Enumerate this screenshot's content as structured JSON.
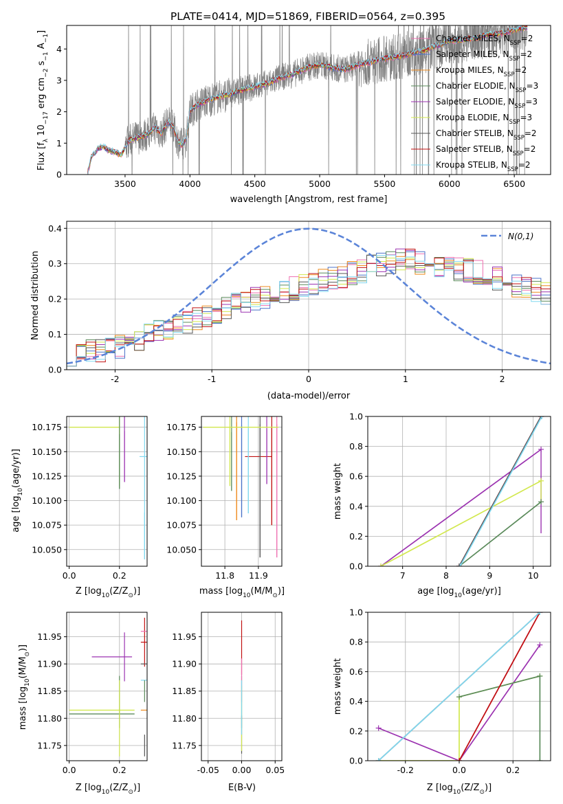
{
  "title": "PLATE=0414, MJD=51869, FIBERID=0564, z=0.395",
  "models": [
    {
      "name": "Chabrier MILES, N$_{SSP}$=2",
      "label_main": "Chabrier MILES, N",
      "label_sub": "SSP",
      "label_tail": "=2",
      "color": "#ee6fb0"
    },
    {
      "name": "Salpeter MILES, N$_{SSP}$=2",
      "label_main": "Salpeter MILES, N",
      "label_sub": "SSP",
      "label_tail": "=2",
      "color": "#4a72c8"
    },
    {
      "name": "Kroupa MILES, N$_{SSP}$=2",
      "label_main": "Kroupa MILES, N",
      "label_sub": "SSP",
      "label_tail": "=2",
      "color": "#ee8a1c"
    },
    {
      "name": "Chabrier ELODIE, N$_{SSP}$=3",
      "label_main": "Chabrier ELODIE, N",
      "label_sub": "SSP",
      "label_tail": "=3",
      "color": "#5a8a5a"
    },
    {
      "name": "Salpeter ELODIE, N$_{SSP}$=3",
      "label_main": "Salpeter ELODIE, N",
      "label_sub": "SSP",
      "label_tail": "=3",
      "color": "#9b32b0"
    },
    {
      "name": "Kroupa ELODIE, N$_{SSP}$=3",
      "label_main": "Kroupa ELODIE, N",
      "label_sub": "SSP",
      "label_tail": "=3",
      "color": "#d2e84e"
    },
    {
      "name": "Chabrier STELIB, N$_{SSP}$=2",
      "label_main": "Chabrier STELIB, N",
      "label_sub": "SSP",
      "label_tail": "=2",
      "color": "#555555"
    },
    {
      "name": "Salpeter STELIB, N$_{SSP}$=2",
      "label_main": "Salpeter STELIB, N",
      "label_sub": "SSP",
      "label_tail": "=2",
      "color": "#c01010"
    },
    {
      "name": "Kroupa STELIB, N$_{SSP}$=2",
      "label_main": "Kroupa STELIB, N",
      "label_sub": "SSP",
      "label_tail": "=2",
      "color": "#80d8f0"
    }
  ],
  "chart_data": [
    {
      "id": "spectrum",
      "type": "line",
      "xlabel": "wavelength [Angstrom, rest frame]",
      "ylabel_parts": [
        "Flux [f",
        "λ",
        " 10",
        "−17",
        " erg cm",
        "−2",
        " s",
        "−1",
        " A",
        "−1",
        "]"
      ],
      "xlim": [
        3050,
        6780
      ],
      "ylim": [
        0,
        4.75
      ],
      "xticks": [
        3500,
        4000,
        4500,
        5000,
        5500,
        6000,
        6500
      ],
      "yticks": [
        0,
        1,
        2,
        3,
        4
      ],
      "observed_color": "#808080",
      "model_continuum": {
        "x": [
          3210,
          3240,
          3290,
          3330,
          3370,
          3420,
          3470,
          3520,
          3570,
          3620,
          3680,
          3730,
          3780,
          3830,
          3870,
          3910,
          3940,
          3970,
          4000,
          4050,
          4100,
          4200,
          4300,
          4400,
          4500,
          4600,
          4700,
          4800,
          4900,
          5000,
          5100,
          5200,
          5300,
          5400,
          5500,
          5600,
          5700,
          5800,
          5900,
          6000,
          6100,
          6200,
          6300,
          6400,
          6500,
          6600
        ],
        "y": [
          0.0,
          0.55,
          0.82,
          0.9,
          0.78,
          0.72,
          0.62,
          1.05,
          1.15,
          1.2,
          1.3,
          1.5,
          1.3,
          1.7,
          1.5,
          1.05,
          0.95,
          1.1,
          2.0,
          2.2,
          2.3,
          2.45,
          2.55,
          2.7,
          2.8,
          2.9,
          3.1,
          3.2,
          3.4,
          3.5,
          3.4,
          3.35,
          3.5,
          3.6,
          3.7,
          3.75,
          3.85,
          3.95,
          4.1,
          4.25,
          4.3,
          4.35,
          4.45,
          4.5,
          4.6,
          4.7
        ]
      }
    },
    {
      "id": "residuals",
      "type": "histogram",
      "xlabel": "(data-model)/error",
      "ylabel": "Normed distribution",
      "xlim": [
        -2.5,
        2.5
      ],
      "ylim": [
        0,
        0.42
      ],
      "xticks": [
        -2,
        -1,
        0,
        1,
        2
      ],
      "yticks": [
        0.0,
        0.1,
        0.2,
        0.3,
        0.4
      ],
      "gaussian": {
        "label": "N(0,1)",
        "color": "#5b84d8",
        "mean": 0,
        "sigma": 1
      },
      "bin_width": 0.1,
      "mean_envelope": [
        0.04,
        0.045,
        0.05,
        0.055,
        0.06,
        0.065,
        0.075,
        0.085,
        0.095,
        0.105,
        0.115,
        0.125,
        0.135,
        0.145,
        0.155,
        0.165,
        0.175,
        0.185,
        0.19,
        0.2,
        0.205,
        0.215,
        0.22,
        0.23,
        0.235,
        0.245,
        0.25,
        0.26,
        0.265,
        0.275,
        0.28,
        0.29,
        0.3,
        0.305,
        0.31,
        0.31,
        0.3,
        0.3,
        0.295,
        0.29,
        0.285,
        0.28,
        0.275,
        0.27,
        0.26,
        0.25,
        0.24,
        0.235,
        0.225,
        0.215,
        0.205,
        0.195,
        0.185,
        0.175,
        0.165,
        0.155,
        0.145,
        0.135,
        0.125,
        0.12,
        0.115,
        0.11,
        0.105,
        0.1,
        0.1,
        0.1,
        0.095,
        0.09,
        0.09,
        0.09
      ]
    },
    {
      "id": "age_vs_Z",
      "type": "errorbar",
      "xlabel_parts": [
        "Z [log",
        "10",
        "(Z/Z",
        "⊙",
        ")]"
      ],
      "ylabel_parts": [
        "age  [log",
        "10",
        "(age/yr)]"
      ],
      "xlim": [
        -0.01,
        0.31
      ],
      "ylim": [
        10.033,
        10.186
      ],
      "xticks": [
        0.0,
        0.2
      ],
      "yticks": [
        10.05,
        10.075,
        10.1,
        10.125,
        10.15,
        10.175
      ],
      "points": [
        {
          "m": 8,
          "x": 0.3,
          "y": 10.145,
          "xerr": 0.02,
          "yerr": 0.0
        },
        {
          "m": 8,
          "x": 0.3,
          "y": 10.064,
          "xerr": 0.0,
          "yerr": 0.024
        },
        {
          "m": 5,
          "x": 0.0,
          "y": 10.175,
          "xerr": 0.0,
          "yerr": 0.0,
          "hline": [
            0.0,
            0.2
          ]
        },
        {
          "m": 5,
          "x": 0.2,
          "y": 10.145,
          "xerr": 0.0,
          "yerr": 0.03
        },
        {
          "m": 4,
          "x": 0.22,
          "y": 10.145,
          "xerr": 0.0,
          "yerr": 0.026
        },
        {
          "m": 3,
          "x": 0.2,
          "y": 10.14,
          "xerr": 0.0,
          "yerr": 0.028
        },
        {
          "m": 6,
          "x": 0.3,
          "y": 10.145,
          "xerr": 0.0,
          "yerr": 0.0
        },
        {
          "m": 8,
          "x": 0.3,
          "y": 10.175,
          "xerr": 0.0,
          "yerr": 0.0
        },
        {
          "m": 7,
          "x": 0.3,
          "y": 10.175,
          "xerr": 0.0,
          "yerr": 0.0
        }
      ]
    },
    {
      "id": "age_vs_mass",
      "type": "errorbar",
      "xlabel_parts": [
        "mass [log",
        "10",
        "(M/M",
        "⊙",
        ")]"
      ],
      "xlim": [
        11.73,
        11.97
      ],
      "ylim": [
        10.033,
        10.186
      ],
      "xticks": [
        11.8,
        11.9
      ],
      "yticks": [
        10.05,
        10.075,
        10.1,
        10.125,
        10.15,
        10.175
      ],
      "points": [
        {
          "m": 7,
          "x": 11.9,
          "y": 10.145,
          "xerr": 0.04,
          "yerr": 0.0
        },
        {
          "m": 0,
          "x": 11.955,
          "y": 10.11,
          "xerr": 0.0,
          "yerr": 0.068
        },
        {
          "m": 7,
          "x": 11.94,
          "y": 10.125,
          "xerr": 0.0,
          "yerr": 0.05
        },
        {
          "m": 6,
          "x": 11.905,
          "y": 10.11,
          "xerr": 0.0,
          "yerr": 0.068
        },
        {
          "m": 4,
          "x": 11.925,
          "y": 10.145,
          "xerr": 0.0,
          "yerr": 0.028
        },
        {
          "m": 8,
          "x": 11.87,
          "y": 10.13,
          "xerr": 0.0,
          "yerr": 0.043
        },
        {
          "m": 1,
          "x": 11.85,
          "y": 10.13,
          "xerr": 0.0,
          "yerr": 0.047
        },
        {
          "m": 2,
          "x": 11.835,
          "y": 10.13,
          "xerr": 0.0,
          "yerr": 0.05
        },
        {
          "m": 3,
          "x": 11.82,
          "y": 10.14,
          "xerr": 0.0,
          "yerr": 0.03
        },
        {
          "m": 5,
          "x": 11.815,
          "y": 10.145,
          "xerr": 0.0,
          "yerr": 0.03
        },
        {
          "m": 5,
          "x": 11.78,
          "y": 10.175,
          "xerr": 0.0,
          "yerr": 0.0,
          "hline": [
            11.735,
            11.96
          ]
        }
      ]
    },
    {
      "id": "mass_weight_vs_age",
      "type": "line",
      "xlabel_parts": [
        "age  [log",
        "10",
        "(age/yr)]"
      ],
      "ylabel": "mass weight",
      "xlim": [
        6.2,
        10.4
      ],
      "ylim": [
        0.0,
        1.0
      ],
      "xticks": [
        7,
        8,
        9,
        10
      ],
      "yticks": [
        0.0,
        0.2,
        0.4,
        0.6,
        0.8,
        1.0
      ],
      "series": [
        {
          "m": 4,
          "x": [
            6.5,
            10.18
          ],
          "y": [
            0.0,
            0.78
          ],
          "yerr_at_end": [
            0.22,
            0.78
          ]
        },
        {
          "m": 5,
          "x": [
            6.5,
            10.18
          ],
          "y": [
            0.0,
            0.57
          ],
          "yerr_at_end": [
            0.43,
            0.57
          ]
        },
        {
          "m": 3,
          "x": [
            8.3,
            10.18
          ],
          "y": [
            0.0,
            0.43
          ]
        },
        {
          "m": 0,
          "x": [
            8.3,
            10.18
          ],
          "y": [
            0.0,
            1.0
          ]
        },
        {
          "m": 7,
          "x": [
            8.3,
            10.18
          ],
          "y": [
            0.0,
            1.0
          ]
        },
        {
          "m": 6,
          "x": [
            8.3,
            10.18
          ],
          "y": [
            0.0,
            1.0
          ]
        },
        {
          "m": 8,
          "x": [
            8.32,
            10.2
          ],
          "y": [
            0.0,
            1.0
          ]
        }
      ]
    },
    {
      "id": "mass_vs_Z",
      "type": "errorbar",
      "xlabel_parts": [
        "Z [log",
        "10",
        "(Z/Z",
        "⊙",
        ")]"
      ],
      "ylabel_parts": [
        "mass [log",
        "10",
        "(M/M",
        "⊙",
        ")]"
      ],
      "xlim": [
        -0.01,
        0.31
      ],
      "ylim": [
        11.722,
        11.995
      ],
      "xticks": [
        0.0,
        0.2
      ],
      "yticks": [
        11.75,
        11.8,
        11.85,
        11.9,
        11.95
      ],
      "points": [
        {
          "m": 5,
          "x": 0.0,
          "y": 11.815,
          "xerr": 0.0,
          "yerr": 0.0,
          "hline": [
            0.0,
            0.26
          ]
        },
        {
          "m": 3,
          "x": 0.0,
          "y": 11.808,
          "xerr": 0.0,
          "yerr": 0.0,
          "hline": [
            0.0,
            0.26
          ]
        },
        {
          "m": 4,
          "x": 0.17,
          "y": 11.913,
          "xerr": 0.08,
          "yerr": 0.0
        },
        {
          "m": 4,
          "x": 0.22,
          "y": 11.913,
          "xerr": 0.0,
          "yerr": 0.045
        },
        {
          "m": 3,
          "x": 0.2,
          "y": 11.83,
          "xerr": 0.0,
          "yerr": 0.048
        },
        {
          "m": 5,
          "x": 0.2,
          "y": 11.8,
          "xerr": 0.0,
          "yerr": 0.07
        },
        {
          "m": 7,
          "x": 0.3,
          "y": 11.94,
          "xerr": 0.015,
          "yerr": 0.045
        },
        {
          "m": 0,
          "x": 0.3,
          "y": 11.96,
          "xerr": 0.015,
          "yerr": 0.0
        },
        {
          "m": 2,
          "x": 0.3,
          "y": 11.815,
          "xerr": 0.015,
          "yerr": 0.0
        },
        {
          "m": 6,
          "x": 0.3,
          "y": 11.9,
          "xerr": 0.015,
          "yerr": 0.0
        },
        {
          "m": 8,
          "x": 0.3,
          "y": 11.87,
          "xerr": 0.015,
          "yerr": 0.0
        },
        {
          "m": 3,
          "x": 0.3,
          "y": 11.85,
          "xerr": 0.0,
          "yerr": 0.02
        },
        {
          "m": 6,
          "x": 0.3,
          "y": 11.75,
          "xerr": 0.0,
          "yerr": 0.02
        }
      ]
    },
    {
      "id": "mass_vs_ebv",
      "type": "errorbar",
      "xlabel": "E(B-V)",
      "xlim": [
        -0.06,
        0.06
      ],
      "ylim": [
        11.722,
        11.995
      ],
      "xticks": [
        -0.05,
        0.0,
        0.05
      ],
      "yticks": [
        11.75,
        11.8,
        11.85,
        11.9,
        11.95
      ],
      "points": [
        {
          "m": 7,
          "x": 0.0,
          "y": 11.93,
          "xerr": 0.0,
          "yerr": 0.05
        },
        {
          "m": 3,
          "x": 0.0,
          "y": 11.83,
          "xerr": 0.0,
          "yerr": 0.048
        },
        {
          "m": 0,
          "x": 0.0,
          "y": 11.87,
          "xerr": 0.0,
          "yerr": 0.04
        },
        {
          "m": 6,
          "x": 0.0,
          "y": 11.77,
          "xerr": 0.0,
          "yerr": 0.035
        },
        {
          "m": 5,
          "x": 0.0,
          "y": 11.8,
          "xerr": 0.0,
          "yerr": 0.06
        },
        {
          "m": 8,
          "x": 0.0,
          "y": 11.82,
          "xerr": 0.0,
          "yerr": 0.05
        }
      ]
    },
    {
      "id": "mass_weight_vs_Z",
      "type": "line",
      "xlabel_parts": [
        "Z [log",
        "10",
        "(Z/Z",
        "⊙",
        ")]"
      ],
      "ylabel": "mass weight",
      "xlim": [
        -0.34,
        0.34
      ],
      "ylim": [
        0.0,
        1.0
      ],
      "xticks": [
        -0.2,
        0.0,
        0.2
      ],
      "yticks": [
        0.0,
        0.2,
        0.4,
        0.6,
        0.8,
        1.0
      ],
      "series": [
        {
          "m": 4,
          "x": [
            -0.3,
            0.0,
            0.3
          ],
          "y": [
            0.22,
            0.0,
            0.78
          ]
        },
        {
          "m": 5,
          "x": [
            -0.3,
            0.0,
            0.0,
            0.3
          ],
          "y": [
            0.0,
            0.0,
            0.43,
            0.57
          ]
        },
        {
          "m": 3,
          "x": [
            0.0,
            0.3,
            0.3
          ],
          "y": [
            0.43,
            0.57,
            0.0
          ]
        },
        {
          "m": 0,
          "x": [
            0.0,
            0.3
          ],
          "y": [
            0.0,
            1.0
          ]
        },
        {
          "m": 7,
          "x": [
            0.0,
            0.3
          ],
          "y": [
            0.0,
            1.0
          ]
        },
        {
          "m": 6,
          "x": [
            -0.3,
            0.3
          ],
          "y": [
            0.0,
            1.0
          ]
        },
        {
          "m": 8,
          "x": [
            -0.3,
            0.3
          ],
          "y": [
            0.0,
            1.0
          ]
        }
      ]
    }
  ]
}
